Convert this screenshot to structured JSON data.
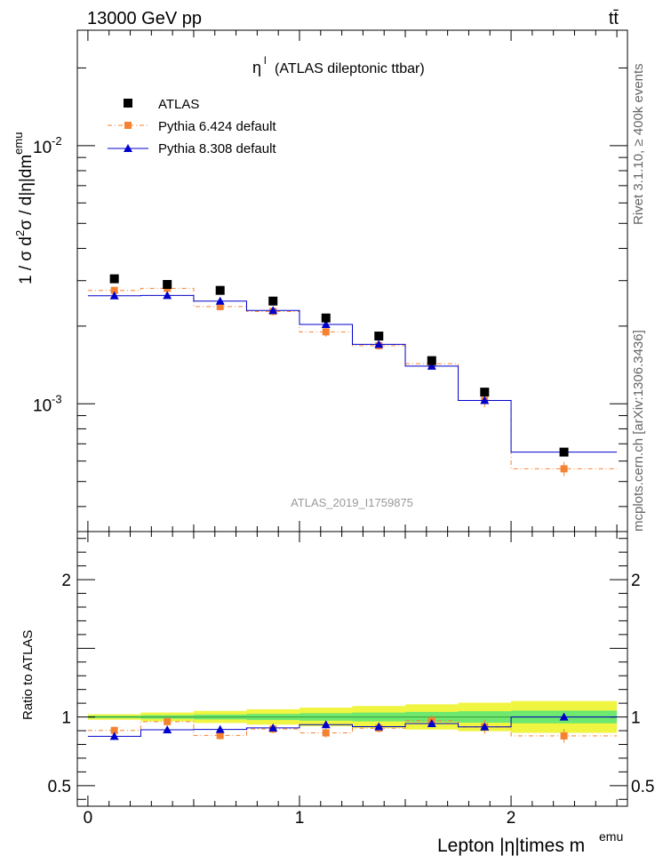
{
  "header": {
    "energy": "13000 GeV pp",
    "process": "tt̄",
    "side_top": "Rivet 3.1.10, ≥ 400k events",
    "side_bottom": "mcplots.cern.ch [arXiv:1306.3436]"
  },
  "colors": {
    "atlas": "#000000",
    "pythia6": "#f58231",
    "pythia8": "#0000cc",
    "band_outer": "#f0f542",
    "band_inner": "#6ee86e"
  },
  "chart_data": {
    "type": "line",
    "title": "η^l (ATLAS dileptonic ttbar)",
    "watermark": "ATLAS_2019_I1759875",
    "xlabel": "Lepton |η|times m^emu",
    "ylabel": "1 / σ d²σ / d|η|dm^emu",
    "ratio_ylabel": "Ratio to ATLAS",
    "xlim": [
      -0.05,
      2.55
    ],
    "ylim": [
      0.00032,
      0.028
    ],
    "yscale": "log",
    "ratio_ylim": [
      0.35,
      2.35
    ],
    "x_ticks": [
      "0",
      "1",
      "2"
    ],
    "y_ticks": [
      {
        "label": "10",
        "exp": "-3",
        "value": 0.001
      },
      {
        "label": "10",
        "exp": "-2",
        "value": 0.01
      }
    ],
    "ratio_ticks": [
      "0.5",
      "1",
      "2"
    ],
    "x": [
      0.125,
      0.375,
      0.625,
      0.875,
      1.125,
      1.375,
      1.625,
      1.875,
      2.25
    ],
    "xerr": [
      0.125,
      0.125,
      0.125,
      0.125,
      0.125,
      0.125,
      0.125,
      0.125,
      0.25
    ],
    "series": [
      {
        "name": "ATLAS",
        "values": [
          0.00305,
          0.0029,
          0.00275,
          0.0025,
          0.00215,
          0.00183,
          0.00147,
          0.00111,
          0.00065
        ]
      },
      {
        "name": "Pythia 6.424 default",
        "values": [
          0.00275,
          0.0028,
          0.00238,
          0.00228,
          0.0019,
          0.00168,
          0.00143,
          0.00103,
          0.00056
        ],
        "errors": [
          6e-05,
          7e-05,
          8e-05,
          8e-05,
          8e-05,
          6e-05,
          6e-05,
          6e-05,
          3.5e-05
        ],
        "ratio": [
          0.902,
          0.966,
          0.865,
          0.912,
          0.884,
          0.918,
          0.973,
          0.928,
          0.862
        ],
        "ratio_err": [
          0.025,
          0.025,
          0.03,
          0.03,
          0.035,
          0.03,
          0.04,
          0.05,
          0.05
        ]
      },
      {
        "name": "Pythia 8.308 default",
        "values": [
          0.00262,
          0.00263,
          0.0025,
          0.0023,
          0.00203,
          0.0017,
          0.0014,
          0.00103,
          0.00065
        ],
        "ratio": [
          0.859,
          0.907,
          0.909,
          0.92,
          0.944,
          0.929,
          0.952,
          0.928,
          1.0
        ]
      }
    ]
  }
}
